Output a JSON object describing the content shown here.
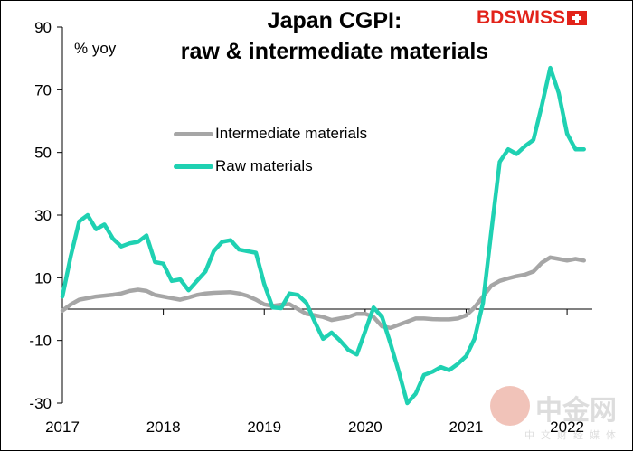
{
  "chart_data": {
    "type": "line",
    "title": "Japan CGPI:\nraw & intermediate materials",
    "ylabel": "% yoy",
    "xlabel": "",
    "ylim": [
      -30,
      90
    ],
    "xlim": [
      2017,
      2022.25
    ],
    "y_ticks": [
      -30,
      -10,
      10,
      30,
      50,
      70,
      90
    ],
    "x_ticks": [
      2017,
      2018,
      2019,
      2020,
      2021,
      2022
    ],
    "x_tick_labels": [
      "2017",
      "2018",
      "2019",
      "2020",
      "2021",
      "2022"
    ],
    "grid": false,
    "legend": {
      "placement": "center-left"
    },
    "series": [
      {
        "name": "Intermediate materials",
        "color": "#a6a6a6",
        "x": [
          2017.0,
          2017.083,
          2017.167,
          2017.25,
          2017.333,
          2017.417,
          2017.5,
          2017.583,
          2017.667,
          2017.75,
          2017.833,
          2017.917,
          2018.0,
          2018.083,
          2018.167,
          2018.25,
          2018.333,
          2018.417,
          2018.5,
          2018.583,
          2018.667,
          2018.75,
          2018.833,
          2018.917,
          2019.0,
          2019.083,
          2019.167,
          2019.25,
          2019.333,
          2019.417,
          2019.5,
          2019.583,
          2019.667,
          2019.75,
          2019.833,
          2019.917,
          2020.0,
          2020.083,
          2020.167,
          2020.25,
          2020.333,
          2020.417,
          2020.5,
          2020.583,
          2020.667,
          2020.75,
          2020.833,
          2020.917,
          2021.0,
          2021.083,
          2021.167,
          2021.25,
          2021.333,
          2021.417,
          2021.5,
          2021.583,
          2021.667,
          2021.75,
          2021.833,
          2021.917,
          2022.0,
          2022.083,
          2022.167
        ],
        "values": [
          -0.5,
          1.5,
          3.0,
          3.5,
          4.0,
          4.3,
          4.6,
          5.0,
          5.8,
          6.2,
          5.8,
          4.5,
          4.0,
          3.5,
          3.0,
          3.7,
          4.5,
          5.0,
          5.2,
          5.3,
          5.4,
          5.0,
          4.2,
          3.0,
          1.5,
          1.0,
          1.4,
          1.6,
          0.0,
          -1.5,
          -2.0,
          -2.5,
          -3.5,
          -3.0,
          -2.5,
          -1.5,
          -1.5,
          -2.5,
          -5.5,
          -6.0,
          -5.0,
          -4.0,
          -3.0,
          -3.0,
          -3.2,
          -3.3,
          -3.3,
          -3.0,
          -2.0,
          0.5,
          4.0,
          7.5,
          9.0,
          9.8,
          10.5,
          11.0,
          12.0,
          14.8,
          16.5,
          16.0,
          15.5,
          16.0,
          15.5
        ]
      },
      {
        "name": "Raw materials",
        "color": "#1fd1b2",
        "x": [
          2017.0,
          2017.083,
          2017.167,
          2017.25,
          2017.333,
          2017.417,
          2017.5,
          2017.583,
          2017.667,
          2017.75,
          2017.833,
          2017.917,
          2018.0,
          2018.083,
          2018.167,
          2018.25,
          2018.333,
          2018.417,
          2018.5,
          2018.583,
          2018.667,
          2018.75,
          2018.833,
          2018.917,
          2019.0,
          2019.083,
          2019.167,
          2019.25,
          2019.333,
          2019.417,
          2019.5,
          2019.583,
          2019.667,
          2019.75,
          2019.833,
          2019.917,
          2020.0,
          2020.083,
          2020.167,
          2020.25,
          2020.333,
          2020.417,
          2020.5,
          2020.583,
          2020.667,
          2020.75,
          2020.833,
          2020.917,
          2021.0,
          2021.083,
          2021.167,
          2021.25,
          2021.333,
          2021.417,
          2021.5,
          2021.583,
          2021.667,
          2021.75,
          2021.833,
          2021.917,
          2022.0,
          2022.083,
          2022.167
        ],
        "values": [
          4.0,
          17.0,
          28.0,
          30.0,
          25.5,
          27.0,
          22.5,
          20.0,
          21.0,
          21.5,
          23.5,
          15.0,
          14.5,
          9.0,
          9.5,
          6.0,
          9.0,
          12.0,
          18.5,
          21.5,
          22.0,
          19.0,
          18.5,
          18.0,
          8.0,
          0.5,
          0.3,
          5.0,
          4.5,
          2.0,
          -4.0,
          -9.5,
          -7.5,
          -10.0,
          -13.0,
          -14.5,
          -7.0,
          0.5,
          -2.5,
          -11.0,
          -20.0,
          -30.0,
          -27.0,
          -21.0,
          -20.0,
          -18.5,
          -19.5,
          -17.5,
          -15.0,
          -9.5,
          2.0,
          25.0,
          47.0,
          51.0,
          49.5,
          52.0,
          54.0,
          65.0,
          77.0,
          69.0,
          56.0,
          51.0,
          51.0
        ]
      }
    ]
  },
  "brand": {
    "logo_text": "BDSWISS"
  },
  "watermark": {
    "main_text": "中金网",
    "sub_text": "中文财经媒体",
    "site_text": "CNGOLD.COM"
  }
}
